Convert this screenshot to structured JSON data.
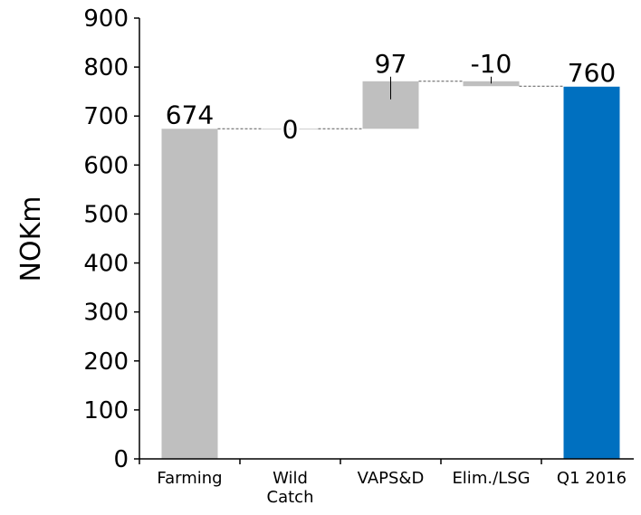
{
  "chart_data": {
    "type": "bar",
    "subtype": "waterfall",
    "title": "",
    "xlabel": "",
    "ylabel": "NOKm",
    "ylim": [
      0,
      900
    ],
    "yticks": [
      0,
      100,
      200,
      300,
      400,
      500,
      600,
      700,
      800,
      900
    ],
    "grid": false,
    "legend": "none",
    "categories": [
      {
        "label_lines": [
          "Farming"
        ]
      },
      {
        "label_lines": [
          "Wild",
          "Catch"
        ]
      },
      {
        "label_lines": [
          "VAPS&D"
        ]
      },
      {
        "label_lines": [
          "Elim./LSG"
        ]
      },
      {
        "label_lines": [
          "Q1 2016"
        ]
      }
    ],
    "bars": [
      {
        "category": "Farming",
        "kind": "total",
        "start": 0,
        "end": 674,
        "label": "674",
        "color": "#bfbfbf"
      },
      {
        "category": "Wild Catch",
        "kind": "delta",
        "start": 674,
        "end": 674,
        "label": "0",
        "color": "#bfbfbf"
      },
      {
        "category": "VAPS&D",
        "kind": "delta",
        "start": 674,
        "end": 771,
        "label": "97",
        "color": "#bfbfbf"
      },
      {
        "category": "Elim./LSG",
        "kind": "delta",
        "start": 771,
        "end": 761,
        "label": "-10",
        "color": "#bfbfbf"
      },
      {
        "category": "Q1 2016",
        "kind": "total",
        "start": 0,
        "end": 760,
        "label": "760",
        "color": "#0070c0"
      }
    ],
    "colors": {
      "increase": "#bfbfbf",
      "total": "#0070c0",
      "axis": "#000000",
      "connector": "#595959"
    }
  }
}
